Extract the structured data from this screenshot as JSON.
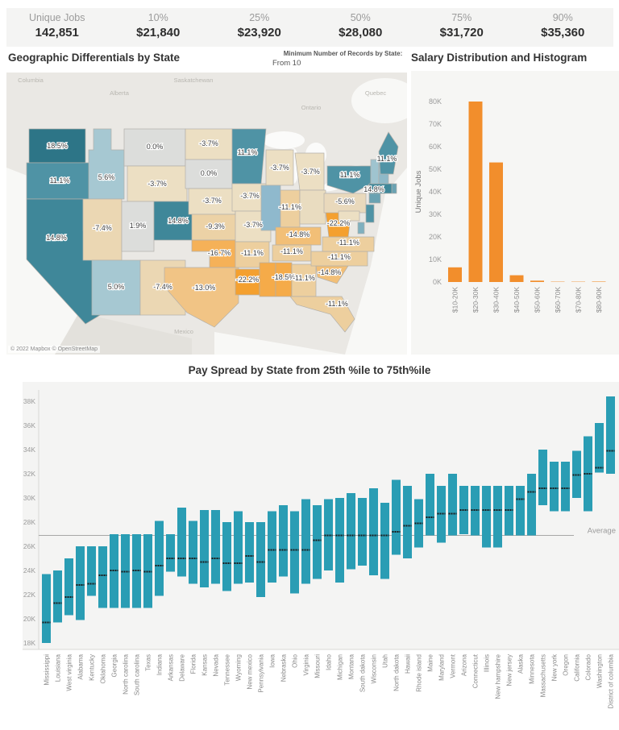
{
  "kpis": [
    {
      "label": "Unique Jobs",
      "value": "142,851"
    },
    {
      "label": "10%",
      "value": "$21,840"
    },
    {
      "label": "25%",
      "value": "$23,920"
    },
    {
      "label": "50%",
      "value": "$28,080"
    },
    {
      "label": "75%",
      "value": "$31,720"
    },
    {
      "label": "90%",
      "value": "$35,360"
    }
  ],
  "map_panel": {
    "title": "Geographic Differentials by State",
    "filter_label": "Minimum Number of Records by State:",
    "filter_value": "From 10",
    "attribution": "© 2022 Mapbox © OpenStreetMap",
    "basemap_labels": [
      "Columbia",
      "Alberta",
      "Saskatchewan",
      "Ontario",
      "Quebec",
      "United States",
      "Mexico"
    ],
    "states": [
      {
        "id": "wa",
        "name": "Washington",
        "label": "18.5%",
        "fill": "#2d7587"
      },
      {
        "id": "or",
        "name": "Oregon",
        "label": "11.1%",
        "fill": "#4f93a5"
      },
      {
        "id": "ca",
        "name": "California",
        "label": "14.8%",
        "fill": "#3f8799"
      },
      {
        "id": "id",
        "name": "Idaho",
        "label": "5.6%",
        "fill": "#a6c8d2"
      },
      {
        "id": "mt",
        "name": "Montana",
        "label": "0.0%",
        "fill": "#dcdddb"
      },
      {
        "id": "wy",
        "name": "Wyoming",
        "label": "-3.7%",
        "fill": "#ecdfc3"
      },
      {
        "id": "nv",
        "name": "Nevada",
        "label": "-7.4%",
        "fill": "#ebd7b3"
      },
      {
        "id": "ut",
        "name": "Utah",
        "label": "1.9%",
        "fill": "#dcdddb"
      },
      {
        "id": "co",
        "name": "Colorado",
        "label": "14.8%",
        "fill": "#3f8799"
      },
      {
        "id": "az",
        "name": "Arizona",
        "label": "5.0%",
        "fill": "#a6c8d2"
      },
      {
        "id": "nm",
        "name": "New Mexico",
        "label": "-7.4%",
        "fill": "#ebd7b3"
      },
      {
        "id": "nd",
        "name": "North Dakota",
        "label": "-3.7%",
        "fill": "#ecdfc3"
      },
      {
        "id": "sd",
        "name": "South Dakota",
        "label": "0.0%",
        "fill": "#dcdddb"
      },
      {
        "id": "ne",
        "name": "Nebraska",
        "label": "-3.7%",
        "fill": "#ecdfc3"
      },
      {
        "id": "ks",
        "name": "Kansas",
        "label": "-9.3%",
        "fill": "#ecd2a6"
      },
      {
        "id": "ok",
        "name": "Oklahoma",
        "label": "-16.7%",
        "fill": "#f5b158"
      },
      {
        "id": "tx",
        "name": "Texas",
        "label": "-13.0%",
        "fill": "#f1c485"
      },
      {
        "id": "mn",
        "name": "Minnesota",
        "label": "11.1%",
        "fill": "#4f93a5"
      },
      {
        "id": "ia",
        "name": "Iowa",
        "label": "-3.7%",
        "fill": "#ecdfc3"
      },
      {
        "id": "mo",
        "name": "Missouri",
        "label": "-3.7%",
        "fill": "#ecdfc3"
      },
      {
        "id": "ar",
        "name": "Arkansas",
        "label": "-11.1%",
        "fill": "#edcf9e"
      },
      {
        "id": "la",
        "name": "Louisiana",
        "label": "-22.2%",
        "fill": "#f4a02f"
      },
      {
        "id": "wi",
        "name": "Wisconsin",
        "label": "-3.7%",
        "fill": "#ecdfc3"
      },
      {
        "id": "il",
        "name": "Illinois",
        "label": "",
        "fill": "#8fb9cd"
      },
      {
        "id": "mi",
        "name": "Michigan",
        "label": "-3.7%",
        "fill": "#ecdfc3"
      },
      {
        "id": "in",
        "name": "Indiana",
        "label": "-11.1%",
        "fill": "#edcf9e"
      },
      {
        "id": "oh",
        "name": "Ohio",
        "label": "",
        "fill": "#e9dcc0"
      },
      {
        "id": "ky",
        "name": "Kentucky",
        "label": "-14.8%",
        "fill": "#f2bf77"
      },
      {
        "id": "tn",
        "name": "Tennessee",
        "label": "-11.1%",
        "fill": "#edcf9e"
      },
      {
        "id": "ms",
        "name": "Mississippi",
        "label": "",
        "fill": "#f5ab49"
      },
      {
        "id": "al",
        "name": "Alabama",
        "label": "-18.5%",
        "fill": "#f5ab49"
      },
      {
        "id": "ga",
        "name": "Georgia",
        "label": "-11.1%",
        "fill": "#edcf9e"
      },
      {
        "id": "fl",
        "name": "Florida",
        "label": "-11.1%",
        "fill": "#edcf9e"
      },
      {
        "id": "sc",
        "name": "South Carolina",
        "label": "-14.8%",
        "fill": "#f2bf77"
      },
      {
        "id": "nc",
        "name": "North Carolina",
        "label": "-11.1%",
        "fill": "#edcf9e"
      },
      {
        "id": "va",
        "name": "Virginia",
        "label": "-11.1%",
        "fill": "#edcf9e"
      },
      {
        "id": "wv",
        "name": "West Virginia",
        "label": "-22.2%",
        "fill": "#f4a02f"
      },
      {
        "id": "pa",
        "name": "Pennsylvania",
        "label": "-5.6%",
        "fill": "#e9d9bc"
      },
      {
        "id": "ny",
        "name": "New York",
        "label": "11.1%",
        "fill": "#4f93a5"
      },
      {
        "id": "md",
        "name": "Maryland",
        "label": "",
        "fill": "#ecdfc3"
      },
      {
        "id": "de",
        "name": "Delaware",
        "label": "",
        "fill": "#7fb0bf"
      },
      {
        "id": "nj",
        "name": "New Jersey",
        "label": "",
        "fill": "#4f93a5"
      },
      {
        "id": "ct",
        "name": "Connecticut",
        "label": "",
        "fill": "#6aa2b2"
      },
      {
        "id": "ri",
        "name": "Rhode Island",
        "label": "",
        "fill": "#6aa2b2"
      },
      {
        "id": "ma",
        "name": "Massachusetts",
        "label": "14.8%",
        "fill": "#3f8799"
      },
      {
        "id": "vt",
        "name": "Vermont",
        "label": "",
        "fill": "#9fc4cf"
      },
      {
        "id": "nh",
        "name": "New Hampshire",
        "label": "",
        "fill": "#8fb9c8"
      },
      {
        "id": "me",
        "name": "Maine",
        "label": "11.1%",
        "fill": "#4f93a5"
      }
    ]
  },
  "chart_data": [
    {
      "id": "salary_histogram",
      "type": "bar",
      "title": "Salary Distribution and Histogram",
      "categories": [
        "$10-20K",
        "$20-30K",
        "$30-40K",
        "$40-50K",
        "$50-60K",
        "$60-70K",
        "$70-80K",
        "$80-90K"
      ],
      "values": [
        6.5,
        80,
        53,
        3,
        0.6,
        0.15,
        0.1,
        0.2
      ],
      "xlabel": "",
      "ylabel": "Unique Jobs",
      "ylim": [
        0,
        85
      ],
      "yticks": [
        0,
        10,
        20,
        30,
        40,
        50,
        60,
        70,
        80
      ],
      "bar_color": "#f28e2c"
    },
    {
      "id": "pay_spread",
      "type": "range-bar",
      "title": "Pay Spread by State from 25th %ile to 75th%ile",
      "categories": [
        "Mississippi",
        "Louisiana",
        "West virginia",
        "Alabama",
        "Kentucky",
        "Oklahoma",
        "Georgia",
        "North carolina",
        "South carolina",
        "Texas",
        "Indiana",
        "Arkansas",
        "Delaware",
        "Florida",
        "Kansas",
        "Nevada",
        "Tennessee",
        "Wyoming",
        "New mexico",
        "Pennsylvania",
        "Iowa",
        "Nebraska",
        "Ohio",
        "Virginia",
        "Missouri",
        "Idaho",
        "Michigan",
        "Montana",
        "South dakota",
        "Wisconsin",
        "Utah",
        "North dakota",
        "Hawaii",
        "Rhode island",
        "Maine",
        "Maryland",
        "Vermont",
        "Arizona",
        "Connecticut",
        "Illinois",
        "New hampshire",
        "New jersey",
        "Alaska",
        "Minnesota",
        "Massachusetts",
        "New york",
        "Oregon",
        "California",
        "Colorado",
        "Washington",
        "District of columbia"
      ],
      "series": [
        {
          "name": "25th percentile (K)",
          "values": [
            18.0,
            19.7,
            20.3,
            19.9,
            21.9,
            20.9,
            20.9,
            20.9,
            20.9,
            20.9,
            21.9,
            23.9,
            23.5,
            22.9,
            22.6,
            22.9,
            22.3,
            22.9,
            23.0,
            21.8,
            23.0,
            23.5,
            22.1,
            22.9,
            23.3,
            24.0,
            23.0,
            24.1,
            24.4,
            23.6,
            23.3,
            25.3,
            25.0,
            25.9,
            26.9,
            26.3,
            26.9,
            27.0,
            26.9,
            25.9,
            25.9,
            26.9,
            26.9,
            26.9,
            29.4,
            28.9,
            28.9,
            30.0,
            28.9,
            32.1,
            32.0
          ]
        },
        {
          "name": "median (K)",
          "values": [
            19.7,
            21.3,
            21.8,
            22.8,
            22.9,
            23.6,
            24.0,
            23.9,
            24.0,
            23.9,
            24.4,
            25.0,
            25.0,
            25.0,
            24.7,
            25.0,
            24.6,
            24.6,
            25.2,
            24.7,
            25.7,
            25.7,
            25.7,
            25.7,
            26.5,
            26.9,
            26.9,
            26.9,
            26.9,
            26.9,
            26.9,
            27.2,
            27.7,
            27.9,
            28.4,
            28.7,
            28.7,
            29.0,
            29.0,
            29.0,
            29.0,
            29.0,
            29.9,
            30.5,
            30.8,
            30.8,
            30.8,
            31.9,
            32.0,
            32.5,
            33.9
          ]
        },
        {
          "name": "75th percentile (K)",
          "values": [
            23.7,
            24.0,
            25.0,
            26.0,
            26.0,
            26.0,
            27.0,
            27.0,
            27.0,
            27.0,
            28.1,
            27.0,
            29.2,
            28.1,
            29.0,
            29.0,
            28.0,
            28.9,
            28.0,
            28.0,
            28.9,
            29.4,
            28.9,
            29.9,
            29.4,
            29.9,
            30.0,
            30.4,
            30.0,
            30.8,
            29.6,
            31.5,
            31.0,
            29.9,
            32.0,
            31.0,
            32.0,
            31.0,
            31.0,
            31.0,
            31.0,
            31.0,
            31.0,
            32.0,
            34.0,
            33.0,
            33.0,
            33.9,
            35.1,
            36.2,
            38.4
          ]
        }
      ],
      "average": 26.9,
      "average_label": "Average",
      "ylim": [
        18,
        39
      ],
      "yticks": [
        18,
        20,
        22,
        24,
        26,
        28,
        30,
        32,
        34,
        36,
        38
      ],
      "bar_color": "#2a9db4",
      "median_color": "#1b1b1b"
    }
  ]
}
